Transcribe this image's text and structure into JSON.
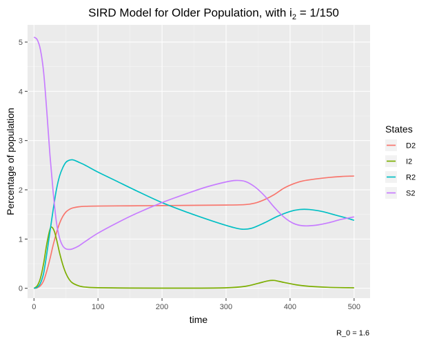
{
  "chart_data": {
    "type": "line",
    "title_main": "SIRD Model for Older Population, with i",
    "title_sub": "2",
    "title_rest": " = 1/150",
    "xlabel": "time",
    "ylabel": "Percentage of population",
    "caption": "R_0 = 1.6",
    "xlim": [
      -10,
      525
    ],
    "ylim": [
      -0.2,
      5.35
    ],
    "x_ticks": [
      0,
      100,
      200,
      300,
      400,
      500
    ],
    "y_ticks": [
      0,
      1,
      2,
      3,
      4,
      5
    ],
    "grid": true,
    "background": "#EBEBEB",
    "legend": {
      "title": "States",
      "position": "right"
    },
    "series": [
      {
        "name": "D2",
        "color": "#F8766D",
        "points": [
          [
            0,
            0
          ],
          [
            5,
            0.01
          ],
          [
            10,
            0.05
          ],
          [
            15,
            0.15
          ],
          [
            20,
            0.35
          ],
          [
            25,
            0.6
          ],
          [
            30,
            0.88
          ],
          [
            35,
            1.12
          ],
          [
            40,
            1.32
          ],
          [
            45,
            1.46
          ],
          [
            50,
            1.55
          ],
          [
            55,
            1.6
          ],
          [
            60,
            1.63
          ],
          [
            70,
            1.655
          ],
          [
            80,
            1.665
          ],
          [
            100,
            1.67
          ],
          [
            150,
            1.675
          ],
          [
            200,
            1.68
          ],
          [
            250,
            1.685
          ],
          [
            300,
            1.69
          ],
          [
            330,
            1.7
          ],
          [
            345,
            1.73
          ],
          [
            360,
            1.8
          ],
          [
            375,
            1.9
          ],
          [
            390,
            2.03
          ],
          [
            405,
            2.12
          ],
          [
            420,
            2.18
          ],
          [
            440,
            2.22
          ],
          [
            460,
            2.25
          ],
          [
            480,
            2.27
          ],
          [
            500,
            2.28
          ]
        ]
      },
      {
        "name": "I2",
        "color": "#7CAE00",
        "points": [
          [
            0,
            0
          ],
          [
            5,
            0.05
          ],
          [
            10,
            0.2
          ],
          [
            15,
            0.5
          ],
          [
            20,
            0.9
          ],
          [
            25,
            1.2
          ],
          [
            28,
            1.24
          ],
          [
            32,
            1.15
          ],
          [
            36,
            0.95
          ],
          [
            40,
            0.72
          ],
          [
            45,
            0.48
          ],
          [
            50,
            0.3
          ],
          [
            55,
            0.18
          ],
          [
            60,
            0.11
          ],
          [
            70,
            0.05
          ],
          [
            80,
            0.025
          ],
          [
            100,
            0.012
          ],
          [
            150,
            0.005
          ],
          [
            200,
            0.003
          ],
          [
            250,
            0.003
          ],
          [
            300,
            0.01
          ],
          [
            330,
            0.04
          ],
          [
            350,
            0.1
          ],
          [
            365,
            0.15
          ],
          [
            375,
            0.16
          ],
          [
            390,
            0.12
          ],
          [
            410,
            0.07
          ],
          [
            430,
            0.04
          ],
          [
            460,
            0.02
          ],
          [
            500,
            0.01
          ]
        ]
      },
      {
        "name": "R2",
        "color": "#00BFC4",
        "points": [
          [
            0,
            0
          ],
          [
            5,
            0.02
          ],
          [
            10,
            0.1
          ],
          [
            15,
            0.3
          ],
          [
            20,
            0.7
          ],
          [
            25,
            1.15
          ],
          [
            30,
            1.6
          ],
          [
            35,
            2
          ],
          [
            40,
            2.28
          ],
          [
            45,
            2.45
          ],
          [
            50,
            2.56
          ],
          [
            55,
            2.6
          ],
          [
            60,
            2.61
          ],
          [
            65,
            2.59
          ],
          [
            70,
            2.56
          ],
          [
            80,
            2.5
          ],
          [
            100,
            2.36
          ],
          [
            130,
            2.17
          ],
          [
            160,
            1.98
          ],
          [
            200,
            1.74
          ],
          [
            240,
            1.54
          ],
          [
            280,
            1.36
          ],
          [
            310,
            1.24
          ],
          [
            325,
            1.2
          ],
          [
            340,
            1.22
          ],
          [
            360,
            1.33
          ],
          [
            380,
            1.46
          ],
          [
            400,
            1.56
          ],
          [
            415,
            1.6
          ],
          [
            430,
            1.6
          ],
          [
            450,
            1.56
          ],
          [
            470,
            1.49
          ],
          [
            490,
            1.42
          ],
          [
            500,
            1.38
          ]
        ]
      },
      {
        "name": "S2",
        "color": "#C77CFF",
        "points": [
          [
            0,
            5.1
          ],
          [
            5,
            5.05
          ],
          [
            10,
            4.85
          ],
          [
            15,
            4.4
          ],
          [
            20,
            3.6
          ],
          [
            25,
            2.7
          ],
          [
            30,
            1.95
          ],
          [
            35,
            1.35
          ],
          [
            40,
            1.02
          ],
          [
            45,
            0.86
          ],
          [
            50,
            0.8
          ],
          [
            55,
            0.79
          ],
          [
            60,
            0.8
          ],
          [
            70,
            0.86
          ],
          [
            80,
            0.95
          ],
          [
            100,
            1.12
          ],
          [
            130,
            1.33
          ],
          [
            160,
            1.52
          ],
          [
            200,
            1.74
          ],
          [
            240,
            1.93
          ],
          [
            270,
            2.06
          ],
          [
            300,
            2.16
          ],
          [
            315,
            2.19
          ],
          [
            330,
            2.17
          ],
          [
            345,
            2.06
          ],
          [
            360,
            1.88
          ],
          [
            375,
            1.65
          ],
          [
            390,
            1.45
          ],
          [
            405,
            1.32
          ],
          [
            420,
            1.27
          ],
          [
            440,
            1.28
          ],
          [
            460,
            1.33
          ],
          [
            480,
            1.4
          ],
          [
            500,
            1.45
          ]
        ]
      }
    ]
  }
}
